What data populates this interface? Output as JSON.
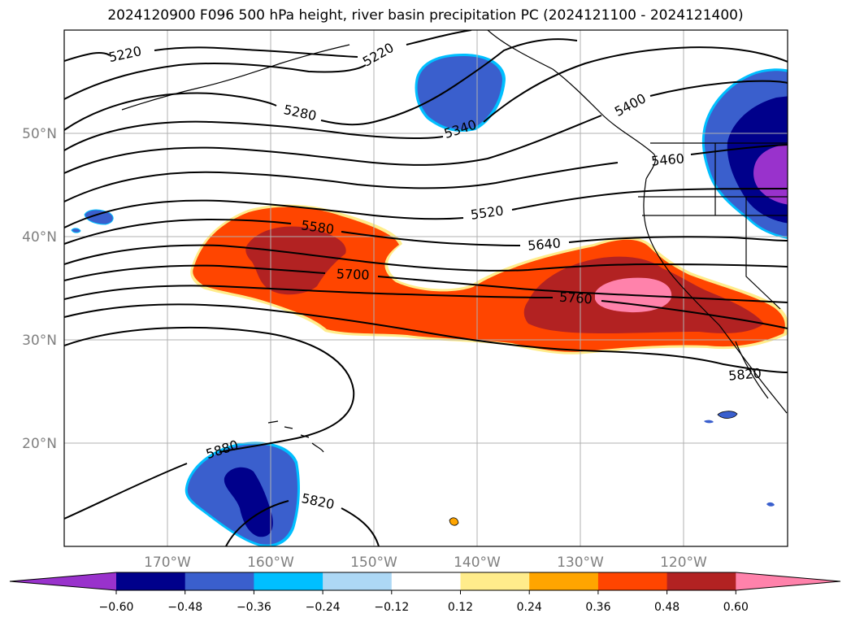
{
  "title": "2024120900 F096 500 hPa height, river basin precipitation PC (2024121100 - 2024121400)",
  "map": {
    "lon_range": [
      -180,
      -110
    ],
    "lat_range": [
      10,
      60
    ],
    "lat_labels": [
      "20°N",
      "30°N",
      "40°N",
      "50°N"
    ],
    "lon_labels": [
      "170°W",
      "160°W",
      "150°W",
      "140°W",
      "130°W",
      "120°W"
    ],
    "gridlines": true,
    "contour_labels": [
      "5220",
      "5220",
      "5280",
      "5340",
      "5400",
      "5460",
      "5520",
      "5580",
      "5640",
      "5700",
      "5760",
      "5820",
      "5880",
      "5820"
    ]
  },
  "colorbar": {
    "colors": [
      "#9932cc",
      "#00008b",
      "#3a5fcd",
      "#00bfff",
      "#add8f5",
      "#ffffff",
      "#ffec8b",
      "#ffa500",
      "#ff4500",
      "#b22222",
      "#ff82ab"
    ],
    "ticks": [
      "−0.60",
      "−0.48",
      "−0.36",
      "−0.24",
      "−0.12",
      "0.12",
      "0.24",
      "0.36",
      "0.48",
      "0.60"
    ]
  }
}
